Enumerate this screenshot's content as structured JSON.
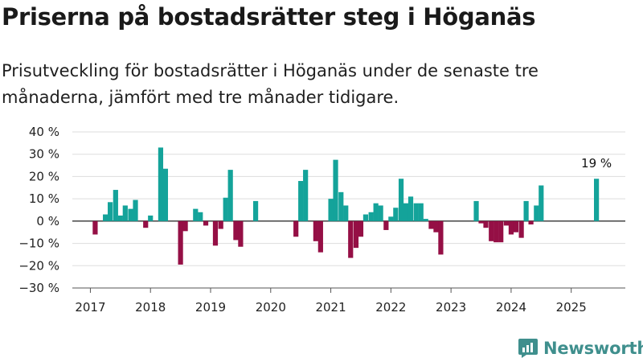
{
  "header": {
    "title": "Priserna på bostadsrätter steg i Höganäs",
    "subtitle": "Prisutveckling för bostadsrätter i Höganäs under de senaste tre månaderna, jämfört med tre månader tidigare."
  },
  "brand": {
    "name": "Newsworthy",
    "icon": "newsworthy-logo-icon",
    "color": "#3f8f8d"
  },
  "chart_data": {
    "type": "bar",
    "title": "",
    "xlabel": "",
    "ylabel": "",
    "ylim": [
      -30,
      40
    ],
    "yticks": [
      -30,
      -20,
      -10,
      0,
      10,
      20,
      30,
      40
    ],
    "ytick_labels": [
      "−30 %",
      "−20 %",
      "−10 %",
      "0 %",
      "10 %",
      "20 %",
      "30 %",
      "40 %"
    ],
    "xlim": [
      2016.7,
      2025.9
    ],
    "xticks": [
      2017,
      2018,
      2019,
      2020,
      2021,
      2022,
      2023,
      2024,
      2025
    ],
    "xtick_labels": [
      "2017",
      "2018",
      "2019",
      "2020",
      "2021",
      "2022",
      "2023",
      "2024",
      "2025"
    ],
    "grid": true,
    "colors": {
      "positive": "#14a39a",
      "negative": "#950f45"
    },
    "x": [
      2017.08,
      2017.25,
      2017.33,
      2017.42,
      2017.5,
      2017.58,
      2017.67,
      2017.75,
      2017.92,
      2018.0,
      2018.17,
      2018.25,
      2018.5,
      2018.58,
      2018.75,
      2018.83,
      2018.92,
      2019.08,
      2019.17,
      2019.25,
      2019.33,
      2019.42,
      2019.5,
      2019.75,
      2020.42,
      2020.5,
      2020.58,
      2020.75,
      2020.83,
      2021.0,
      2021.08,
      2021.17,
      2021.25,
      2021.33,
      2021.42,
      2021.5,
      2021.58,
      2021.67,
      2021.75,
      2021.83,
      2021.92,
      2022.0,
      2022.08,
      2022.17,
      2022.25,
      2022.33,
      2022.42,
      2022.5,
      2022.58,
      2022.67,
      2022.75,
      2022.83,
      2023.42,
      2023.5,
      2023.58,
      2023.67,
      2023.75,
      2023.83,
      2023.92,
      2024.0,
      2024.08,
      2024.17,
      2024.25,
      2024.33,
      2024.42,
      2024.5,
      2025.42
    ],
    "values": [
      -6,
      3,
      8.5,
      14,
      2.5,
      7,
      5.5,
      9.5,
      -3,
      2.5,
      33,
      23.5,
      -19.5,
      -4.5,
      5.5,
      4,
      -2,
      -11,
      -3.5,
      10.5,
      23,
      -8.5,
      -11.5,
      9,
      -7,
      18,
      23,
      -9,
      -14,
      10,
      27.5,
      13,
      7,
      -16.5,
      -12,
      -7,
      3,
      4,
      8,
      7,
      -4,
      2,
      6,
      19,
      8,
      11,
      8,
      8,
      1,
      -3.5,
      -5,
      -15,
      9,
      -1,
      -3,
      -9,
      -9.5,
      -9.5,
      -2,
      -6,
      -5,
      -7.5,
      9,
      -1.5,
      7,
      16,
      19
    ],
    "annotations": [
      {
        "x": 2025.42,
        "y": 19,
        "text": "19 %"
      }
    ]
  }
}
